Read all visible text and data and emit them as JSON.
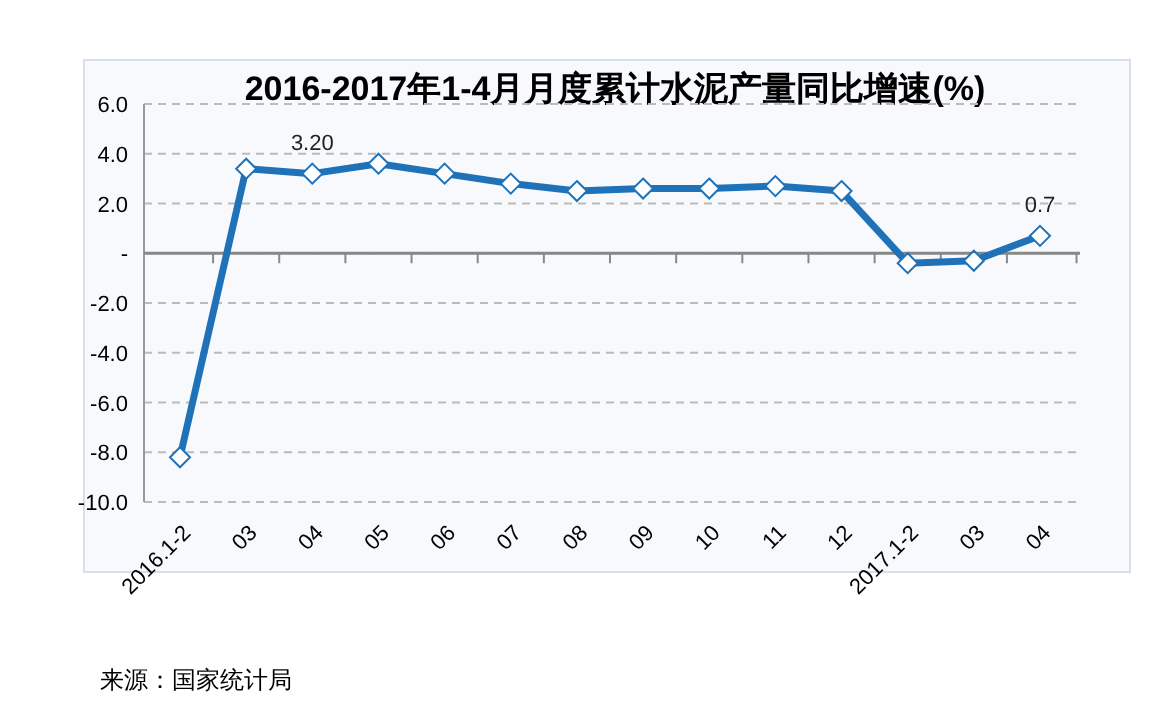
{
  "chart_data": {
    "type": "line",
    "title": "2016-2017年1-4月月度累计水泥产量同比增速(%)",
    "categories": [
      "2016.1-2",
      "03",
      "04",
      "05",
      "06",
      "07",
      "08",
      "09",
      "10",
      "11",
      "12",
      "2017.1-2",
      "03",
      "04"
    ],
    "series": [
      {
        "color": "#1f72b8",
        "values": [
          -8.2,
          3.4,
          3.2,
          3.6,
          3.2,
          2.8,
          2.5,
          2.6,
          2.6,
          2.7,
          2.5,
          -0.4,
          -0.3,
          0.7
        ],
        "value_labels": [
          null,
          null,
          "3.20",
          null,
          null,
          null,
          null,
          null,
          null,
          null,
          null,
          null,
          null,
          "0.7"
        ]
      }
    ],
    "ylim": [
      -10,
      6
    ],
    "yticks": [
      {
        "value": -10,
        "label": "-10.0"
      },
      {
        "value": -8,
        "label": "-8.0"
      },
      {
        "value": -6,
        "label": "-6.0"
      },
      {
        "value": -4,
        "label": "-4.0"
      },
      {
        "value": -2,
        "label": "-2.0"
      },
      {
        "value": 0,
        "label": "-"
      },
      {
        "value": 2,
        "label": "2.0"
      },
      {
        "value": 4,
        "label": "4.0"
      },
      {
        "value": 6,
        "label": "6.0"
      }
    ],
    "grid": "y",
    "marker": "diamond",
    "line_style": "solid",
    "annotations": [
      "来源：国家统计局"
    ]
  }
}
